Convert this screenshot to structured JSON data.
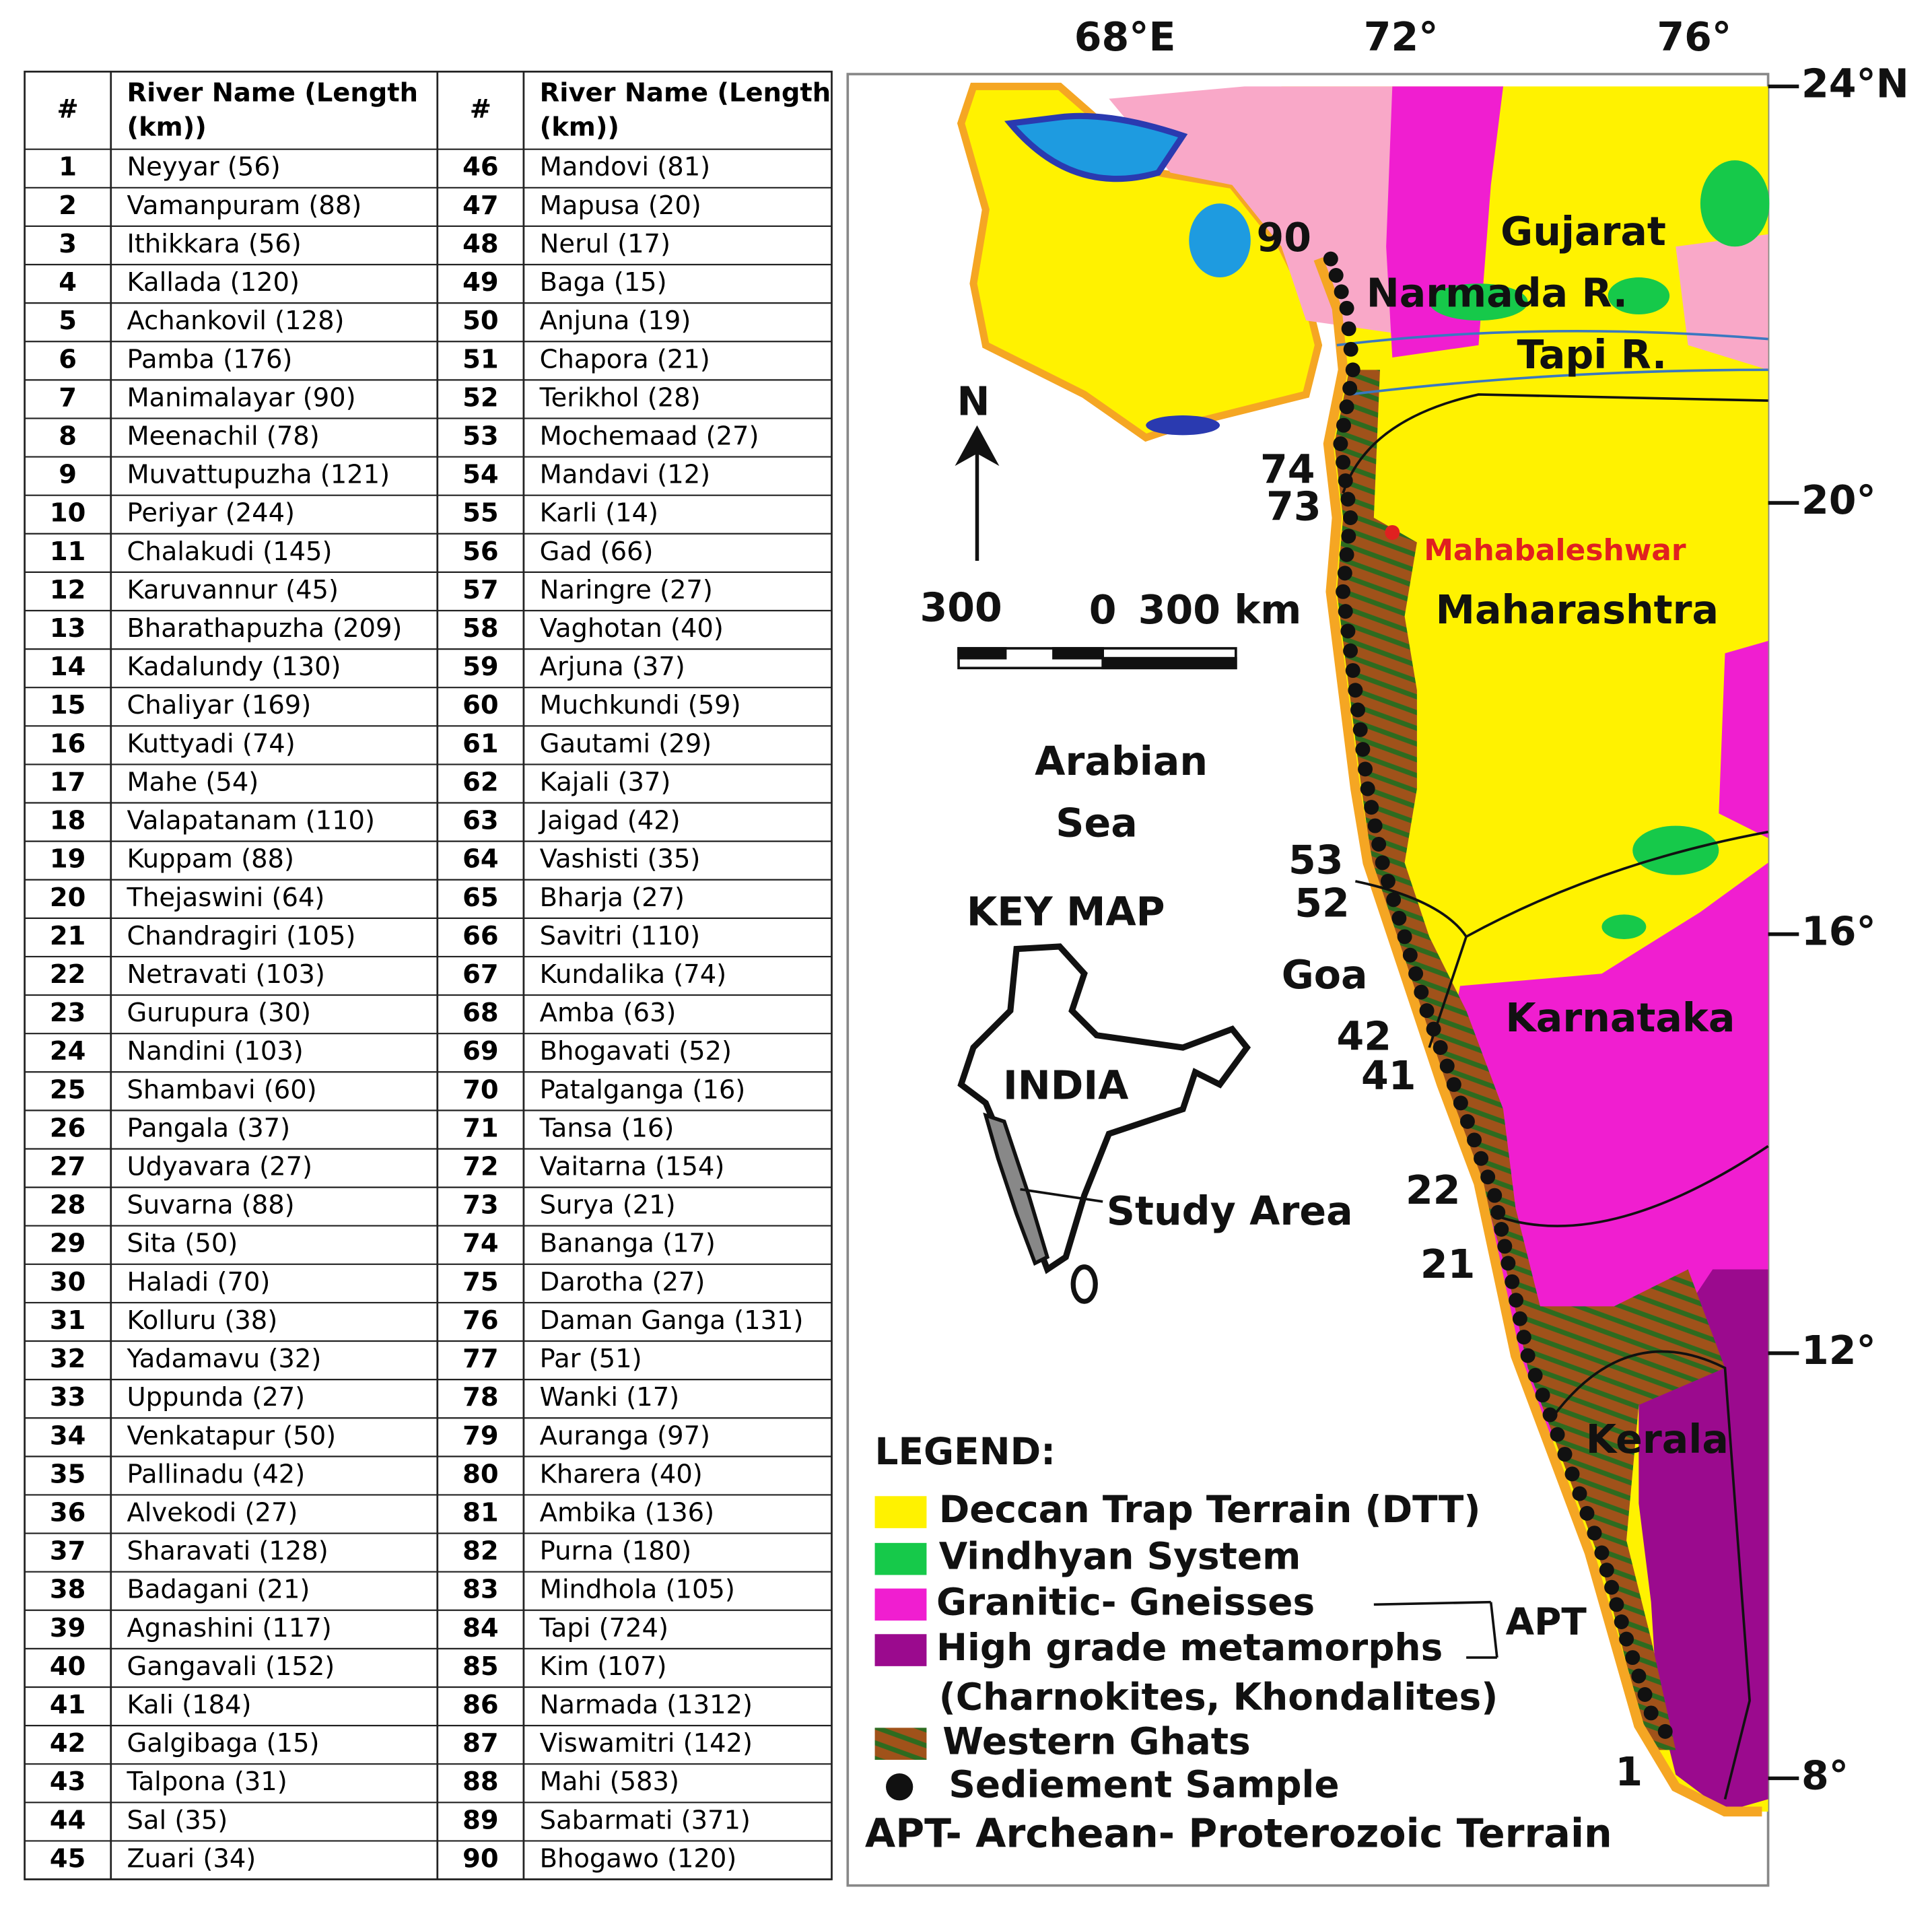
{
  "table": {
    "headers": [
      "#",
      "River Name (Length (km))",
      "#",
      "River Name (Length (km))"
    ],
    "rows": [
      [
        "1",
        "Neyyar (56)",
        "46",
        "Mandovi (81)"
      ],
      [
        "2",
        "Vamanpuram (88)",
        "47",
        "Mapusa (20)"
      ],
      [
        "3",
        "Ithikkara (56)",
        "48",
        "Nerul (17)"
      ],
      [
        "4",
        "Kallada (120)",
        "49",
        "Baga (15)"
      ],
      [
        "5",
        "Achankovil (128)",
        "50",
        "Anjuna (19)"
      ],
      [
        "6",
        "Pamba (176)",
        "51",
        "Chapora (21)"
      ],
      [
        "7",
        "Manimalayar (90)",
        "52",
        "Terikhol (28)"
      ],
      [
        "8",
        "Meenachil (78)",
        "53",
        "Mochemaad (27)"
      ],
      [
        "9",
        "Muvattupuzha (121)",
        "54",
        "Mandavi (12)"
      ],
      [
        "10",
        "Periyar (244)",
        "55",
        "Karli (14)"
      ],
      [
        "11",
        "Chalakudi (145)",
        "56",
        "Gad (66)"
      ],
      [
        "12",
        "Karuvannur (45)",
        "57",
        "Naringre (27)"
      ],
      [
        "13",
        "Bharathapuzha (209)",
        "58",
        "Vaghotan (40)"
      ],
      [
        "14",
        "Kadalundy (130)",
        "59",
        "Arjuna (37)"
      ],
      [
        "15",
        "Chaliyar (169)",
        "60",
        "Muchkundi (59)"
      ],
      [
        "16",
        "Kuttyadi (74)",
        "61",
        "Gautami (29)"
      ],
      [
        "17",
        "Mahe (54)",
        "62",
        "Kajali (37)"
      ],
      [
        "18",
        "Valapatanam (110)",
        "63",
        "Jaigad (42)"
      ],
      [
        "19",
        "Kuppam (88)",
        "64",
        "Vashisti (35)"
      ],
      [
        "20",
        "Thejaswini (64)",
        "65",
        "Bharja (27)"
      ],
      [
        "21",
        "Chandragiri (105)",
        "66",
        "Savitri (110)"
      ],
      [
        "22",
        "Netravati (103)",
        "67",
        "Kundalika (74)"
      ],
      [
        "23",
        "Gurupura (30)",
        "68",
        "Amba (63)"
      ],
      [
        "24",
        "Nandini (103)",
        "69",
        "Bhogavati (52)"
      ],
      [
        "25",
        "Shambavi (60)",
        "70",
        "Patalganga (16)"
      ],
      [
        "26",
        "Pangala (37)",
        "71",
        "Tansa (16)"
      ],
      [
        "27",
        "Udyavara (27)",
        "72",
        "Vaitarna (154)"
      ],
      [
        "28",
        "Suvarna (88)",
        "73",
        "Surya (21)"
      ],
      [
        "29",
        "Sita (50)",
        "74",
        "Bananga (17)"
      ],
      [
        "30",
        "Haladi (70)",
        "75",
        "Darotha (27)"
      ],
      [
        "31",
        "Kolluru (38)",
        "76",
        "Daman Ganga (131)"
      ],
      [
        "32",
        "Yadamavu (32)",
        "77",
        "Par (51)"
      ],
      [
        "33",
        "Uppunda (27)",
        "78",
        "Wanki (17)"
      ],
      [
        "34",
        "Venkatapur (50)",
        "79",
        "Auranga (97)"
      ],
      [
        "35",
        "Pallinadu (42)",
        "80",
        "Kharera (40)"
      ],
      [
        "36",
        "Alvekodi (27)",
        "81",
        "Ambika (136)"
      ],
      [
        "37",
        "Sharavati (128)",
        "82",
        "Purna (180)"
      ],
      [
        "38",
        "Badagani (21)",
        "83",
        "Mindhola (105)"
      ],
      [
        "39",
        "Agnashini (117)",
        "84",
        "Tapi (724)"
      ],
      [
        "40",
        "Gangavali (152)",
        "85",
        "Kim (107)"
      ],
      [
        "41",
        "Kali (184)",
        "86",
        "Narmada (1312)"
      ],
      [
        "42",
        "Galgibaga (15)",
        "87",
        "Viswamitri (142)"
      ],
      [
        "43",
        "Talpona (31)",
        "88",
        "Mahi (583)"
      ],
      [
        "44",
        "Sal (35)",
        "89",
        "Sabarmati (371)"
      ],
      [
        "45",
        "Zuari (34)",
        "90",
        "Bhogawo (120)"
      ]
    ]
  },
  "map": {
    "lon_ticks": [
      "68°E",
      "72°",
      "76°"
    ],
    "lat_ticks": [
      "24°N",
      "20°",
      "16°",
      "12°",
      "8°"
    ],
    "places": {
      "gujarat": "Gujarat",
      "narmada": "Narmada R.",
      "tapi": "Tapi R.",
      "mahabaleshwar": "Mahabaleshwar",
      "maharashtra": "Maharashtra",
      "sea1": "Arabian",
      "sea2": "Sea",
      "goa": "Goa",
      "karnataka": "Karnataka",
      "kerala": "Kerala"
    },
    "north": "N",
    "scale": {
      "left": "300",
      "zero": "0",
      "right": "300 km"
    },
    "key_map": {
      "title": "KEY MAP",
      "india": "INDIA",
      "study_area": "Study Area"
    },
    "sample_labels": [
      "90",
      "74",
      "73",
      "53",
      "52",
      "42",
      "41",
      "22",
      "21",
      "1"
    ],
    "legend": {
      "title": "LEGEND:",
      "items": [
        "Deccan Trap Terrain (DTT)",
        "Vindhyan System",
        "Granitic- Gneisses",
        "High grade metamorphs",
        "(Charnokites, Khondalites)",
        "Western Ghats",
        "Sediement Sample"
      ],
      "apt": "APT",
      "apt_note": "APT- Archean- Proterozoic Terrain"
    }
  }
}
